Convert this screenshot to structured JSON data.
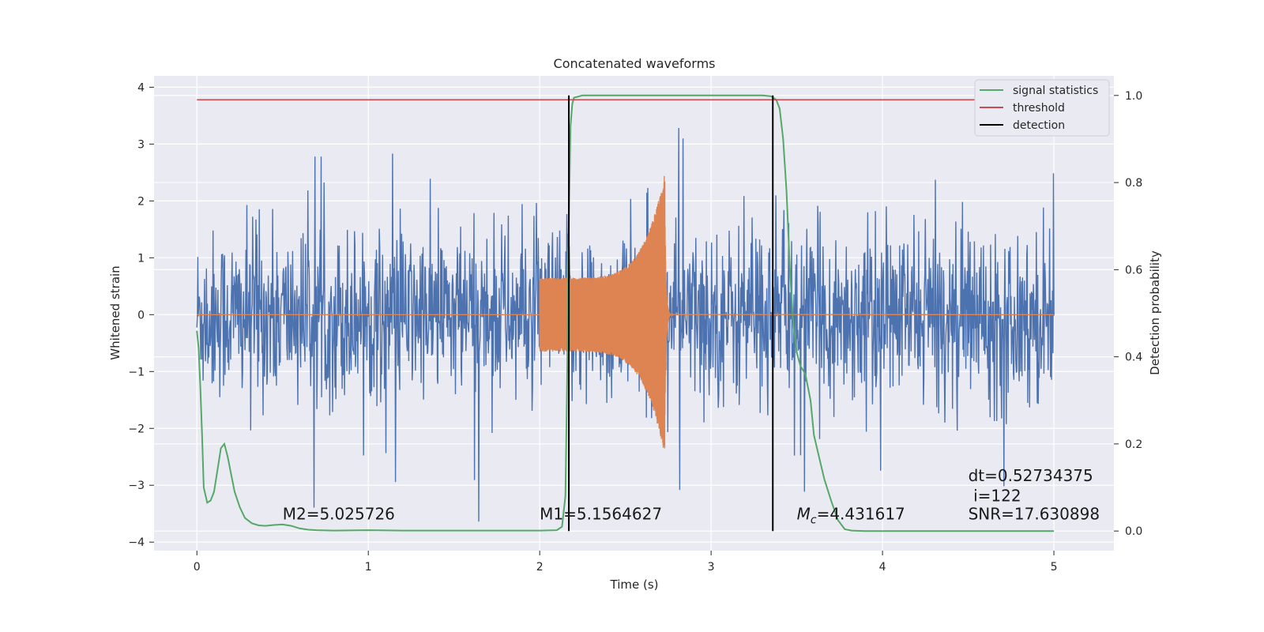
{
  "chart_data": {
    "type": "line",
    "title": "Concatenated waveforms",
    "xlabel": "Time (s)",
    "ylabel": "Whitened strain",
    "ylabel_right": "Detection probability",
    "xlim": [
      -0.25,
      5.35
    ],
    "ylim": [
      -4.15,
      4.2
    ],
    "ylim_right": [
      -0.045,
      1.045
    ],
    "xticks": [
      0,
      1,
      2,
      3,
      4,
      5
    ],
    "yticks": [
      -4,
      -3,
      -2,
      -1,
      0,
      1,
      2,
      3,
      4
    ],
    "yticks_right": [
      0.0,
      0.2,
      0.4,
      0.6,
      0.8,
      1.0
    ],
    "grid": true,
    "legend_position": "top-right",
    "colors": {
      "strain": "#4c72b0",
      "template": "#dd8452",
      "signal_statistics": "#55a868",
      "threshold": "#c44e52",
      "detection": "#000000",
      "background": "#eaeaf2"
    },
    "series": [
      {
        "name": "signal statistics",
        "axis": "right",
        "x": [
          0,
          0.01,
          0.02,
          0.03,
          0.04,
          0.06,
          0.08,
          0.1,
          0.12,
          0.14,
          0.16,
          0.18,
          0.2,
          0.22,
          0.25,
          0.28,
          0.32,
          0.36,
          0.4,
          0.45,
          0.5,
          0.55,
          0.6,
          0.65,
          0.7,
          0.8,
          1.0,
          1.2,
          1.6,
          2.0,
          2.1,
          2.13,
          2.15,
          2.16,
          2.17,
          2.18,
          2.19,
          2.2,
          2.25,
          2.3,
          2.5,
          3.0,
          3.3,
          3.35,
          3.38,
          3.4,
          3.42,
          3.44,
          3.46,
          3.48,
          3.5,
          3.52,
          3.55,
          3.58,
          3.6,
          3.63,
          3.66,
          3.7,
          3.74,
          3.78,
          3.82,
          3.9,
          4.0,
          4.5,
          5.0
        ],
        "values": [
          0.46,
          0.42,
          0.33,
          0.22,
          0.1,
          0.065,
          0.07,
          0.09,
          0.14,
          0.19,
          0.2,
          0.17,
          0.13,
          0.09,
          0.055,
          0.03,
          0.018,
          0.013,
          0.012,
          0.014,
          0.015,
          0.012,
          0.006,
          0.003,
          0.002,
          0.001,
          0.002,
          0.001,
          0.001,
          0.001,
          0.002,
          0.01,
          0.08,
          0.35,
          0.72,
          0.93,
          0.98,
          0.995,
          1.0,
          1.0,
          1.0,
          1.0,
          1.0,
          0.998,
          0.99,
          0.97,
          0.9,
          0.78,
          0.6,
          0.47,
          0.41,
          0.38,
          0.36,
          0.3,
          0.22,
          0.17,
          0.12,
          0.07,
          0.025,
          0.004,
          0.001,
          0.0,
          0.0,
          0.0,
          0.0
        ]
      },
      {
        "name": "threshold",
        "axis": "right",
        "x": [
          0,
          5.0
        ],
        "values": [
          0.99,
          0.99
        ]
      },
      {
        "name": "detection",
        "axis": "right",
        "type": "vline",
        "x": [
          2.17,
          3.36
        ],
        "y_range": [
          0.0,
          1.0
        ]
      },
      {
        "axis": "left",
        "type": "noise",
        "x_range": [
          0,
          5.0
        ],
        "typical_amplitude": 0.73,
        "peak_range": [
          -3.8,
          3.8
        ]
      },
      {
        "axis": "left",
        "type": "chirp",
        "x_range": [
          2.0,
          2.73
        ],
        "amplitude_start": 0.65,
        "amplitude_peak": 2.5,
        "ringdown_end": 2.78
      }
    ],
    "annotations": [
      {
        "label": "M2=5.025726",
        "x": 0.5,
        "y": -3.6
      },
      {
        "label": "M1=5.1564627",
        "x": 2.0,
        "y": -3.6
      },
      {
        "label": "M",
        "sub": "c",
        "rest": "=4.431617",
        "x": 3.5,
        "y": -3.6
      },
      {
        "label": "SNR=17.630898",
        "x": 4.5,
        "y": -3.6
      },
      {
        "label": "dt=0.52734375",
        "x": 4.5,
        "y": -2.93
      },
      {
        "label": "i=122",
        "x": 4.53,
        "y": -3.28
      }
    ]
  }
}
